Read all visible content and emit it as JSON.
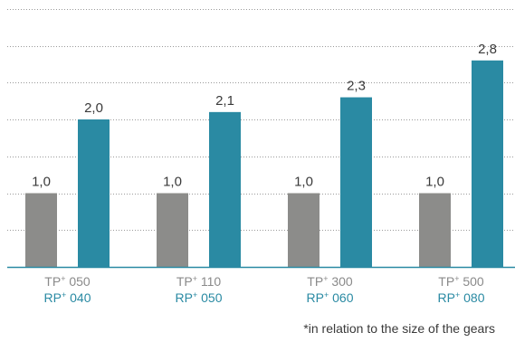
{
  "chart_data": {
    "type": "bar",
    "categories": [
      {
        "tp": "TP",
        "tp_num": "050",
        "rp": "RP",
        "rp_num": "040"
      },
      {
        "tp": "TP",
        "tp_num": "110",
        "rp": "RP",
        "rp_num": "050"
      },
      {
        "tp": "TP",
        "tp_num": "300",
        "rp": "RP",
        "rp_num": "060"
      },
      {
        "tp": "TP",
        "tp_num": "500",
        "rp": "RP",
        "rp_num": "080"
      }
    ],
    "category_superscript": "+",
    "series": [
      {
        "values": [
          1.0,
          1.0,
          1.0,
          1.0
        ],
        "labels": [
          "1,0",
          "1,0",
          "1,0",
          "1,0"
        ],
        "color": "#8c8c8a"
      },
      {
        "values": [
          2.0,
          2.1,
          2.3,
          2.8
        ],
        "labels": [
          "2,0",
          "2,1",
          "2,3",
          "2,8"
        ],
        "color": "#2a8aa3"
      }
    ],
    "ylim": [
      0,
      3.5
    ],
    "gridline_step": 0.5,
    "grid": true,
    "grid_style": "dotted",
    "axis_color": "#2a8aa3",
    "footnote": "*in relation to the size of the gears"
  }
}
